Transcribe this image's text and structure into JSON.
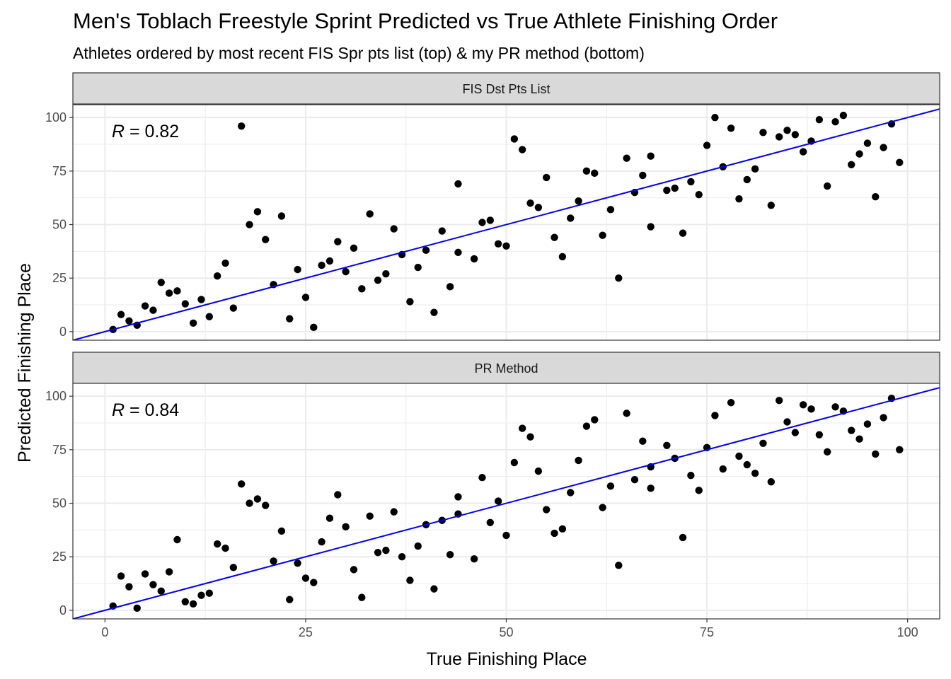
{
  "title": "Men's Toblach Freestyle Sprint Predicted vs True Athlete Finishing Order",
  "subtitle": "Athletes ordered by most recent FIS Spr pts list (top) & my PR method (bottom)",
  "xlabel": "True Finishing Place",
  "ylabel": "Predicted Finishing Place",
  "colors": {
    "points": "#000000",
    "fit_line": "#0000ff",
    "strip": "#d9d9d9",
    "grid": "#ebebeb"
  },
  "chart_data": [
    {
      "type": "scatter",
      "panel": "FIS Dst Pts List",
      "r_symbol": "R",
      "r_value": " = 0.82",
      "xlim": [
        -4,
        104
      ],
      "ylim": [
        -4,
        106
      ],
      "x_ticks": [
        0,
        25,
        50,
        75,
        100
      ],
      "y_ticks": [
        0,
        25,
        50,
        75,
        100
      ],
      "fit": {
        "intercept": 0,
        "slope": 1
      },
      "points": [
        [
          1,
          1
        ],
        [
          2,
          8
        ],
        [
          3,
          5
        ],
        [
          4,
          3
        ],
        [
          5,
          12
        ],
        [
          6,
          10
        ],
        [
          7,
          23
        ],
        [
          8,
          18
        ],
        [
          9,
          19
        ],
        [
          10,
          13
        ],
        [
          11,
          4
        ],
        [
          12,
          15
        ],
        [
          13,
          7
        ],
        [
          14,
          26
        ],
        [
          15,
          32
        ],
        [
          16,
          11
        ],
        [
          17,
          96
        ],
        [
          18,
          50
        ],
        [
          19,
          56
        ],
        [
          20,
          43
        ],
        [
          21,
          22
        ],
        [
          22,
          54
        ],
        [
          23,
          6
        ],
        [
          24,
          29
        ],
        [
          25,
          16
        ],
        [
          26,
          2
        ],
        [
          27,
          31
        ],
        [
          28,
          33
        ],
        [
          29,
          42
        ],
        [
          30,
          28
        ],
        [
          31,
          39
        ],
        [
          32,
          20
        ],
        [
          33,
          55
        ],
        [
          34,
          24
        ],
        [
          35,
          27
        ],
        [
          36,
          48
        ],
        [
          37,
          36
        ],
        [
          38,
          14
        ],
        [
          39,
          30
        ],
        [
          40,
          38
        ],
        [
          41,
          9
        ],
        [
          42,
          47
        ],
        [
          43,
          21
        ],
        [
          44,
          69
        ],
        [
          44,
          37
        ],
        [
          46,
          34
        ],
        [
          47,
          51
        ],
        [
          48,
          52
        ],
        [
          49,
          41
        ],
        [
          50,
          40
        ],
        [
          51,
          90
        ],
        [
          52,
          85
        ],
        [
          53,
          60
        ],
        [
          54,
          58
        ],
        [
          55,
          72
        ],
        [
          56,
          44
        ],
        [
          57,
          35
        ],
        [
          58,
          53
        ],
        [
          59,
          61
        ],
        [
          60,
          75
        ],
        [
          61,
          74
        ],
        [
          62,
          45
        ],
        [
          63,
          57
        ],
        [
          64,
          25
        ],
        [
          65,
          81
        ],
        [
          66,
          65
        ],
        [
          67,
          73
        ],
        [
          68,
          82
        ],
        [
          68,
          49
        ],
        [
          70,
          66
        ],
        [
          71,
          67
        ],
        [
          72,
          46
        ],
        [
          73,
          70
        ],
        [
          74,
          64
        ],
        [
          75,
          87
        ],
        [
          76,
          100
        ],
        [
          77,
          77
        ],
        [
          78,
          95
        ],
        [
          79,
          62
        ],
        [
          80,
          71
        ],
        [
          81,
          76
        ],
        [
          82,
          93
        ],
        [
          83,
          59
        ],
        [
          84,
          91
        ],
        [
          85,
          94
        ],
        [
          86,
          92
        ],
        [
          87,
          84
        ],
        [
          88,
          89
        ],
        [
          89,
          99
        ],
        [
          90,
          68
        ],
        [
          91,
          98
        ],
        [
          92,
          101
        ],
        [
          93,
          78
        ],
        [
          94,
          83
        ],
        [
          95,
          88
        ],
        [
          96,
          63
        ],
        [
          97,
          86
        ],
        [
          98,
          97
        ],
        [
          99,
          79
        ]
      ]
    },
    {
      "type": "scatter",
      "panel": "PR Method",
      "r_symbol": "R",
      "r_value": " = 0.84",
      "xlim": [
        -4,
        104
      ],
      "ylim": [
        -4,
        106
      ],
      "x_ticks": [
        0,
        25,
        50,
        75,
        100
      ],
      "y_ticks": [
        0,
        25,
        50,
        75,
        100
      ],
      "fit": {
        "intercept": 0,
        "slope": 1
      },
      "points": [
        [
          1,
          2
        ],
        [
          2,
          16
        ],
        [
          3,
          11
        ],
        [
          4,
          1
        ],
        [
          5,
          17
        ],
        [
          6,
          12
        ],
        [
          7,
          9
        ],
        [
          8,
          18
        ],
        [
          9,
          33
        ],
        [
          10,
          4
        ],
        [
          11,
          3
        ],
        [
          12,
          7
        ],
        [
          13,
          8
        ],
        [
          14,
          31
        ],
        [
          15,
          29
        ],
        [
          16,
          20
        ],
        [
          17,
          59
        ],
        [
          18,
          50
        ],
        [
          19,
          52
        ],
        [
          20,
          49
        ],
        [
          21,
          23
        ],
        [
          22,
          37
        ],
        [
          23,
          5
        ],
        [
          24,
          22
        ],
        [
          25,
          15
        ],
        [
          26,
          13
        ],
        [
          27,
          32
        ],
        [
          28,
          43
        ],
        [
          29,
          54
        ],
        [
          30,
          39
        ],
        [
          31,
          19
        ],
        [
          32,
          6
        ],
        [
          33,
          44
        ],
        [
          34,
          27
        ],
        [
          35,
          28
        ],
        [
          36,
          46
        ],
        [
          37,
          25
        ],
        [
          38,
          14
        ],
        [
          39,
          30
        ],
        [
          40,
          40
        ],
        [
          41,
          10
        ],
        [
          42,
          42
        ],
        [
          43,
          26
        ],
        [
          44,
          53
        ],
        [
          44,
          45
        ],
        [
          46,
          24
        ],
        [
          47,
          62
        ],
        [
          48,
          41
        ],
        [
          49,
          51
        ],
        [
          50,
          35
        ],
        [
          51,
          69
        ],
        [
          52,
          85
        ],
        [
          53,
          81
        ],
        [
          54,
          65
        ],
        [
          55,
          47
        ],
        [
          56,
          36
        ],
        [
          57,
          38
        ],
        [
          58,
          55
        ],
        [
          59,
          70
        ],
        [
          60,
          86
        ],
        [
          61,
          89
        ],
        [
          62,
          48
        ],
        [
          63,
          58
        ],
        [
          64,
          21
        ],
        [
          65,
          92
        ],
        [
          66,
          61
        ],
        [
          67,
          79
        ],
        [
          68,
          67
        ],
        [
          68,
          57
        ],
        [
          70,
          77
        ],
        [
          71,
          71
        ],
        [
          72,
          34
        ],
        [
          73,
          63
        ],
        [
          74,
          56
        ],
        [
          75,
          76
        ],
        [
          76,
          91
        ],
        [
          77,
          66
        ],
        [
          78,
          97
        ],
        [
          79,
          72
        ],
        [
          80,
          68
        ],
        [
          81,
          64
        ],
        [
          82,
          78
        ],
        [
          83,
          60
        ],
        [
          84,
          98
        ],
        [
          85,
          88
        ],
        [
          86,
          83
        ],
        [
          87,
          96
        ],
        [
          88,
          94
        ],
        [
          89,
          82
        ],
        [
          90,
          74
        ],
        [
          91,
          95
        ],
        [
          92,
          93
        ],
        [
          93,
          84
        ],
        [
          94,
          80
        ],
        [
          95,
          87
        ],
        [
          96,
          73
        ],
        [
          97,
          90
        ],
        [
          98,
          99
        ],
        [
          99,
          75
        ]
      ]
    }
  ]
}
